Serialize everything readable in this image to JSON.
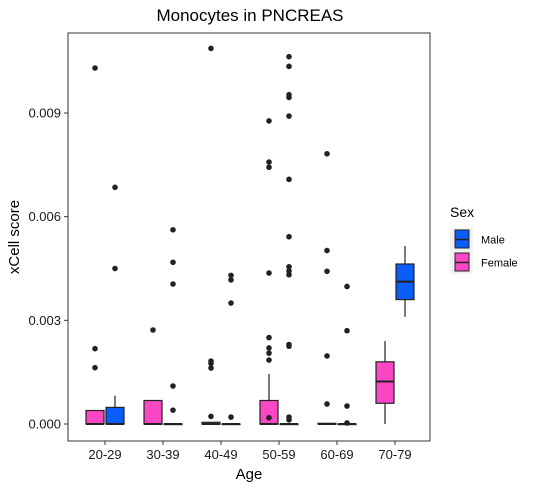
{
  "chart_data": {
    "type": "box",
    "title": "Monocytes in PNCREAS",
    "xlabel": "Age",
    "ylabel": "xCell score",
    "categories": [
      "20-29",
      "30-39",
      "40-49",
      "50-59",
      "60-69",
      "70-79"
    ],
    "yticks": [
      "0.000",
      "0.003",
      "0.006",
      "0.009"
    ],
    "ylim": [
      -0.0005,
      0.0112
    ],
    "grid": false,
    "legend": {
      "title": "Sex",
      "position": "right",
      "entries": [
        {
          "name": "Male",
          "color": "#0a5cfb"
        },
        {
          "name": "Female",
          "color": "#fb47c4"
        }
      ]
    },
    "series": [
      {
        "name": "Female",
        "color": "#fb47c4",
        "boxes": [
          {
            "category": "20-29",
            "whisker_low": 0.0,
            "q1": 0.0,
            "median": 0.0,
            "q3": 0.00039,
            "whisker_high": 0.00039,
            "outliers": [
              0.00163,
              0.00218,
              0.0103
            ]
          },
          {
            "category": "30-39",
            "whisker_low": 0.0,
            "q1": 0.0,
            "median": 0.0,
            "q3": 0.00068,
            "whisker_high": 0.00068,
            "outliers": [
              0.00272
            ]
          },
          {
            "category": "40-49",
            "whisker_low": 0.0,
            "q1": 0.0,
            "median": 0.0,
            "q3": 5e-05,
            "whisker_high": 5e-05,
            "outliers": [
              0.00022,
              0.00162,
              0.00175,
              0.00182,
              0.01087
            ]
          },
          {
            "category": "50-59",
            "whisker_low": 0.0,
            "q1": 0.0,
            "median": 0.0,
            "q3": 0.00068,
            "whisker_high": 0.00145,
            "outliers": [
              0.00018,
              0.00185,
              0.00205,
              0.0022,
              0.0025,
              0.00437,
              0.00743,
              0.00758,
              0.00877
            ]
          },
          {
            "category": "60-69",
            "whisker_low": 0.0,
            "q1": 0.0,
            "median": 0.0,
            "q3": 2e-05,
            "whisker_high": 2e-05,
            "outliers": [
              0.00058,
              0.00197,
              0.00442,
              0.00502,
              0.00782
            ]
          },
          {
            "category": "70-79",
            "whisker_low": 0.0,
            "q1": 0.0006,
            "median": 0.00123,
            "q3": 0.0018,
            "whisker_high": 0.0024,
            "outliers": []
          }
        ]
      },
      {
        "name": "Male",
        "color": "#0a5cfb",
        "boxes": [
          {
            "category": "20-29",
            "whisker_low": 0.0,
            "q1": 0.0,
            "median": 0.0,
            "q3": 0.00048,
            "whisker_high": 0.00082,
            "outliers": [
              0.0045,
              0.00685
            ]
          },
          {
            "category": "30-39",
            "whisker_low": 0.0,
            "q1": 0.0,
            "median": 0.0,
            "q3": 0.0,
            "whisker_high": 0.0,
            "outliers": [
              0.0004,
              0.0011,
              0.00405,
              0.00468,
              0.00562
            ]
          },
          {
            "category": "40-49",
            "whisker_low": 0.0,
            "q1": 0.0,
            "median": 0.0,
            "q3": 0.0,
            "whisker_high": 0.0,
            "outliers": [
              0.0002,
              0.0035,
              0.00417,
              0.0043
            ]
          },
          {
            "category": "50-59",
            "whisker_low": 0.0,
            "q1": 0.0,
            "median": 0.0,
            "q3": 0.0,
            "whisker_high": 0.0,
            "outliers": [
              0.00012,
              0.0002,
              0.00225,
              0.0023,
              0.00432,
              0.00443,
              0.00455,
              0.00542,
              0.00708,
              0.00891,
              0.00945,
              0.00953,
              0.01035,
              0.01063
            ]
          },
          {
            "category": "60-69",
            "whisker_low": 0.0,
            "q1": 0.0,
            "median": 0.0,
            "q3": 0.0,
            "whisker_high": 0.0,
            "outliers": [
              3e-05,
              0.00052,
              0.0027,
              0.00398
            ]
          },
          {
            "category": "70-79",
            "whisker_low": 0.0031,
            "q1": 0.0036,
            "median": 0.00412,
            "q3": 0.00463,
            "whisker_high": 0.00515,
            "outliers": []
          }
        ]
      }
    ]
  }
}
